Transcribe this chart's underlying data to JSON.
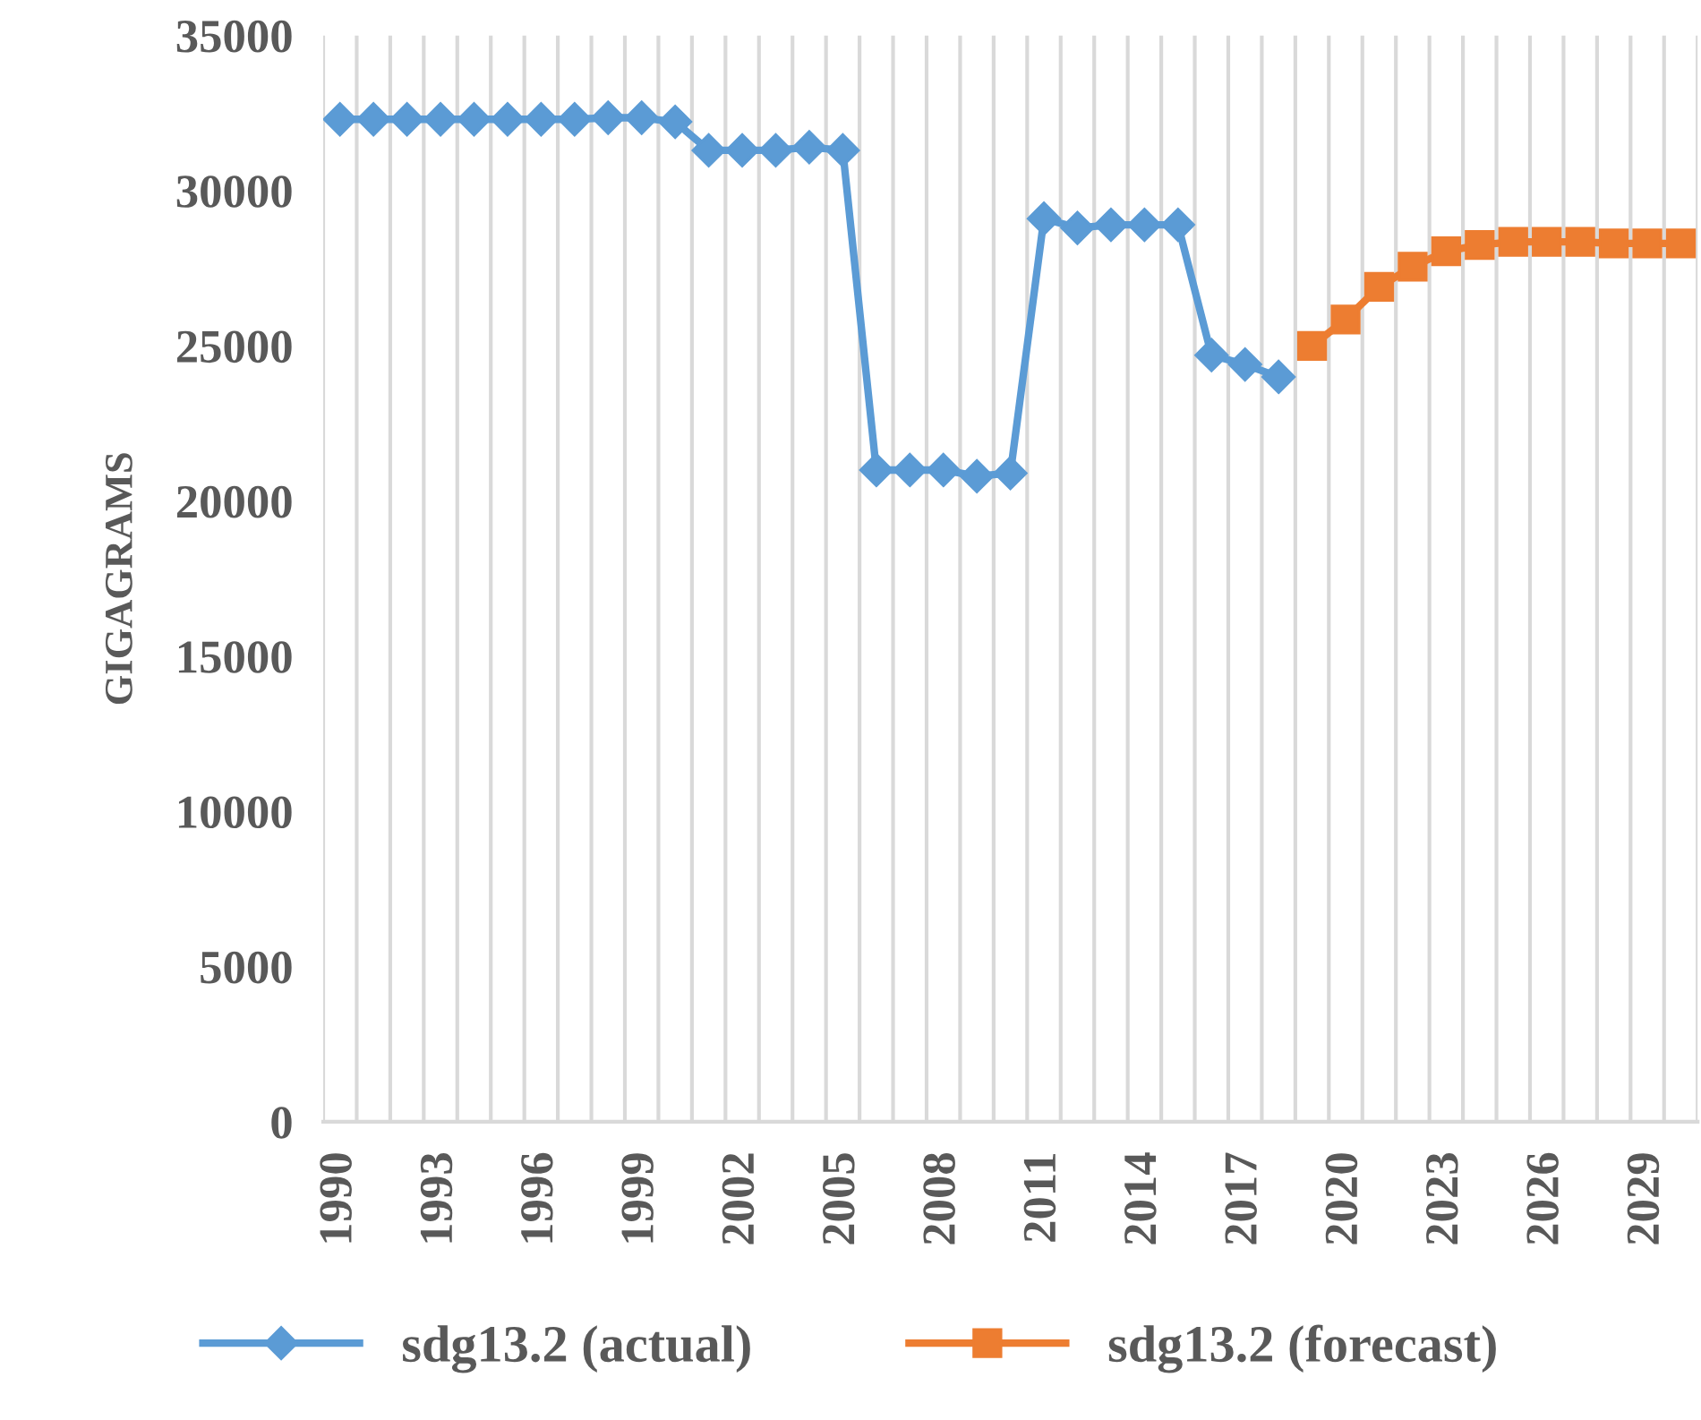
{
  "chart_data": {
    "type": "line",
    "ylabel": "GIGAGRAMS",
    "categories": [
      "1990",
      null,
      null,
      "1993",
      null,
      null,
      "1996",
      null,
      null,
      "1999",
      null,
      null,
      "2002",
      null,
      null,
      "2005",
      null,
      null,
      "2008",
      null,
      null,
      "2011",
      null,
      null,
      "2014",
      null,
      null,
      "2017",
      null,
      null,
      "2020",
      null,
      null,
      "2023",
      null,
      null,
      "2026",
      null,
      null,
      "2029",
      null
    ],
    "series": [
      {
        "name": "sdg13.2 (actual)",
        "color": "#5b9bd5",
        "marker": "diamond",
        "values": [
          32300,
          32300,
          32300,
          32300,
          32300,
          32300,
          32300,
          32300,
          32350,
          32350,
          32220,
          31300,
          31300,
          31300,
          31400,
          31300,
          21000,
          21000,
          21000,
          20800,
          20900,
          29100,
          28800,
          28900,
          28900,
          28900,
          24700,
          24400,
          24000,
          null,
          null,
          null,
          null,
          null,
          null,
          null,
          null,
          null,
          null,
          null,
          null
        ]
      },
      {
        "name": "sdg13.2 (forecast)",
        "color": "#ed7d31",
        "marker": "square",
        "values": [
          null,
          null,
          null,
          null,
          null,
          null,
          null,
          null,
          null,
          null,
          null,
          null,
          null,
          null,
          null,
          null,
          null,
          null,
          null,
          null,
          null,
          null,
          null,
          null,
          null,
          null,
          null,
          null,
          null,
          25000,
          25850,
          26900,
          27550,
          28050,
          28250,
          28350,
          28350,
          28350,
          28300,
          28300,
          28300
        ]
      }
    ],
    "ylim": [
      0,
      35000
    ],
    "yticks": [
      0,
      5000,
      10000,
      15000,
      20000,
      25000,
      30000,
      35000
    ],
    "grid": "x",
    "legend": "bottom",
    "line_style": "solid"
  }
}
